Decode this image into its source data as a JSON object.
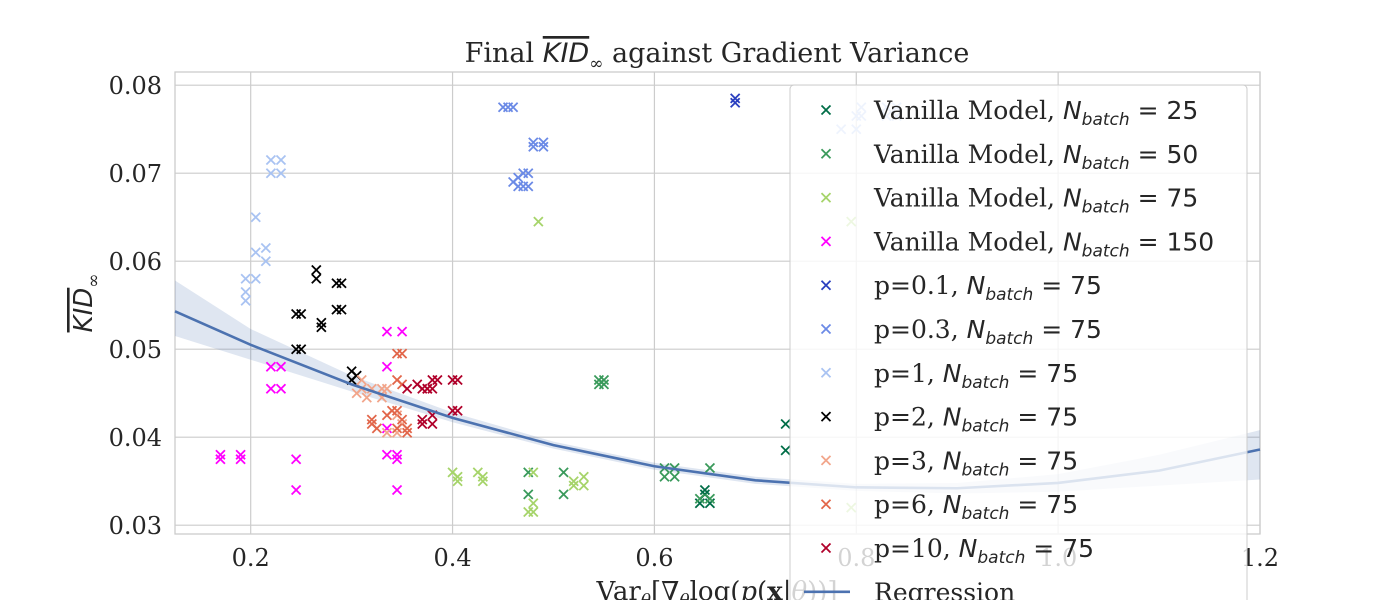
{
  "chart_data": {
    "type": "scatter",
    "title": "Final KID∞ against Gradient Variance",
    "ylabel": "KID∞",
    "xlabel": "Varθ[∇θlog(p(x|θ))]",
    "xlim": [
      0.125,
      1.2
    ],
    "ylim": [
      0.029,
      0.0815
    ],
    "xticks": [
      "0.2",
      "0.4",
      "0.6",
      "0.8",
      "1.0",
      "1.2"
    ],
    "yticks": [
      "0.03",
      "0.04",
      "0.05",
      "0.06",
      "0.07",
      "0.08"
    ],
    "grid": true,
    "legend_position": "top-right",
    "series": [
      {
        "name": "Vanilla Model, N_batch = 25",
        "label_prefix": "Vanilla Model, ",
        "label_value": "25",
        "color": "#006d47",
        "points": [
          [
            0.645,
            0.0325
          ],
          [
            0.65,
            0.0335
          ],
          [
            0.655,
            0.0325
          ],
          [
            0.65,
            0.034
          ],
          [
            0.73,
            0.0415
          ],
          [
            0.73,
            0.0385
          ]
        ]
      },
      {
        "name": "Vanilla Model, N_batch = 50",
        "label_prefix": "Vanilla Model, ",
        "label_value": "50",
        "color": "#3a9a5b",
        "points": [
          [
            0.545,
            0.046
          ],
          [
            0.55,
            0.0465
          ],
          [
            0.545,
            0.0465
          ],
          [
            0.55,
            0.046
          ],
          [
            0.61,
            0.0365
          ],
          [
            0.62,
            0.0365
          ],
          [
            0.61,
            0.0355
          ],
          [
            0.62,
            0.0355
          ],
          [
            0.645,
            0.033
          ],
          [
            0.655,
            0.033
          ],
          [
            0.655,
            0.0365
          ],
          [
            0.475,
            0.0335
          ],
          [
            0.51,
            0.0335
          ],
          [
            0.51,
            0.036
          ],
          [
            0.475,
            0.036
          ]
        ]
      },
      {
        "name": "Vanilla Model, N_batch = 75",
        "label_prefix": "Vanilla Model, ",
        "label_value": "75",
        "color": "#a6d46a",
        "points": [
          [
            0.475,
            0.0315
          ],
          [
            0.48,
            0.0315
          ],
          [
            0.48,
            0.0325
          ],
          [
            0.48,
            0.036
          ],
          [
            0.485,
            0.0645
          ],
          [
            0.4,
            0.036
          ],
          [
            0.405,
            0.035
          ],
          [
            0.405,
            0.0355
          ],
          [
            0.425,
            0.036
          ],
          [
            0.43,
            0.035
          ],
          [
            0.43,
            0.0355
          ],
          [
            0.52,
            0.0345
          ],
          [
            0.53,
            0.0345
          ],
          [
            0.52,
            0.035
          ],
          [
            0.53,
            0.0355
          ],
          [
            0.795,
            0.0645
          ],
          [
            0.795,
            0.032
          ]
        ]
      },
      {
        "name": "Vanilla Model, N_batch = 150",
        "label_prefix": "Vanilla Model, ",
        "label_value": "150",
        "color": "#ff00ff",
        "points": [
          [
            0.17,
            0.0375
          ],
          [
            0.17,
            0.038
          ],
          [
            0.19,
            0.0375
          ],
          [
            0.19,
            0.038
          ],
          [
            0.245,
            0.0375
          ],
          [
            0.245,
            0.034
          ],
          [
            0.22,
            0.0455
          ],
          [
            0.23,
            0.0455
          ],
          [
            0.22,
            0.048
          ],
          [
            0.23,
            0.048
          ],
          [
            0.335,
            0.052
          ],
          [
            0.35,
            0.052
          ],
          [
            0.335,
            0.048
          ],
          [
            0.335,
            0.041
          ],
          [
            0.335,
            0.038
          ],
          [
            0.345,
            0.0375
          ],
          [
            0.345,
            0.038
          ],
          [
            0.345,
            0.034
          ]
        ]
      },
      {
        "name": "p=0.1, N_batch = 75",
        "label_prefix": "p=0.1, ",
        "label_value": "75",
        "color": "#2a3fbf",
        "points": [
          [
            0.68,
            0.0785
          ],
          [
            0.68,
            0.078
          ]
        ]
      },
      {
        "name": "p=0.3, N_batch = 75",
        "label_prefix": "p=0.3, ",
        "label_value": "75",
        "color": "#6b8ae6",
        "points": [
          [
            0.45,
            0.0775
          ],
          [
            0.455,
            0.0775
          ],
          [
            0.46,
            0.0775
          ],
          [
            0.48,
            0.0735
          ],
          [
            0.49,
            0.0735
          ],
          [
            0.48,
            0.073
          ],
          [
            0.49,
            0.073
          ],
          [
            0.465,
            0.0695
          ],
          [
            0.47,
            0.07
          ],
          [
            0.475,
            0.07
          ],
          [
            0.46,
            0.069
          ],
          [
            0.465,
            0.0685
          ],
          [
            0.475,
            0.0685
          ],
          [
            0.47,
            0.0685
          ]
        ]
      },
      {
        "name": "p=1, N_batch = 75",
        "label_prefix": "p=1, ",
        "label_value": "75",
        "color": "#a9c3f2",
        "points": [
          [
            0.22,
            0.0715
          ],
          [
            0.23,
            0.0715
          ],
          [
            0.22,
            0.07
          ],
          [
            0.23,
            0.07
          ],
          [
            0.205,
            0.065
          ],
          [
            0.205,
            0.061
          ],
          [
            0.215,
            0.0615
          ],
          [
            0.215,
            0.06
          ],
          [
            0.195,
            0.058
          ],
          [
            0.205,
            0.058
          ],
          [
            0.195,
            0.0565
          ],
          [
            0.195,
            0.0555
          ],
          [
            0.83,
            0.0775
          ],
          [
            0.84,
            0.0775
          ],
          [
            0.83,
            0.0765
          ],
          [
            0.84,
            0.0765
          ],
          [
            0.805,
            0.0775
          ],
          [
            0.805,
            0.0765
          ],
          [
            0.8,
            0.0765
          ],
          [
            0.785,
            0.075
          ],
          [
            0.8,
            0.075
          ]
        ]
      },
      {
        "name": "p=2, N_batch = 75",
        "label_prefix": "p=2, ",
        "label_value": "75",
        "color": "#000000",
        "points": [
          [
            0.265,
            0.059
          ],
          [
            0.265,
            0.058
          ],
          [
            0.285,
            0.0575
          ],
          [
            0.29,
            0.0575
          ],
          [
            0.285,
            0.0545
          ],
          [
            0.29,
            0.0545
          ],
          [
            0.245,
            0.054
          ],
          [
            0.25,
            0.054
          ],
          [
            0.27,
            0.053
          ],
          [
            0.27,
            0.0525
          ],
          [
            0.245,
            0.05
          ],
          [
            0.25,
            0.05
          ],
          [
            0.3,
            0.0475
          ],
          [
            0.305,
            0.047
          ],
          [
            0.3,
            0.0465
          ]
        ]
      },
      {
        "name": "p=3, N_batch = 75",
        "label_prefix": "p=3, ",
        "label_value": "75",
        "color": "#f2a58a",
        "points": [
          [
            0.31,
            0.0465
          ],
          [
            0.31,
            0.0455
          ],
          [
            0.32,
            0.0455
          ],
          [
            0.305,
            0.045
          ],
          [
            0.315,
            0.0445
          ],
          [
            0.33,
            0.0455
          ],
          [
            0.335,
            0.0455
          ],
          [
            0.33,
            0.0445
          ],
          [
            0.335,
            0.0405
          ],
          [
            0.345,
            0.0405
          ],
          [
            0.35,
            0.0415
          ],
          [
            0.345,
            0.0425
          ]
        ]
      },
      {
        "name": "p=6, N_batch = 75",
        "label_prefix": "p=6, ",
        "label_value": "75",
        "color": "#e2664a",
        "points": [
          [
            0.345,
            0.0495
          ],
          [
            0.35,
            0.0495
          ],
          [
            0.345,
            0.0465
          ],
          [
            0.35,
            0.046
          ],
          [
            0.32,
            0.042
          ],
          [
            0.32,
            0.0415
          ],
          [
            0.325,
            0.041
          ],
          [
            0.335,
            0.0425
          ],
          [
            0.34,
            0.043
          ],
          [
            0.345,
            0.043
          ],
          [
            0.35,
            0.042
          ],
          [
            0.355,
            0.041
          ],
          [
            0.355,
            0.0405
          ],
          [
            0.345,
            0.041
          ]
        ]
      },
      {
        "name": "p=10, N_batch = 75",
        "label_prefix": "p=10, ",
        "label_value": "75",
        "color": "#b0002a",
        "points": [
          [
            0.355,
            0.0455
          ],
          [
            0.365,
            0.046
          ],
          [
            0.37,
            0.0455
          ],
          [
            0.375,
            0.0455
          ],
          [
            0.38,
            0.0455
          ],
          [
            0.385,
            0.0465
          ],
          [
            0.38,
            0.0465
          ],
          [
            0.375,
            0.0455
          ],
          [
            0.37,
            0.042
          ],
          [
            0.38,
            0.0425
          ],
          [
            0.38,
            0.0415
          ],
          [
            0.37,
            0.0415
          ],
          [
            0.4,
            0.0465
          ],
          [
            0.405,
            0.0465
          ],
          [
            0.4,
            0.043
          ],
          [
            0.405,
            0.043
          ]
        ]
      },
      {
        "name": "Regression",
        "type": "line",
        "color": "#4c72b0",
        "curve": {
          "x": [
            0.125,
            0.2,
            0.3,
            0.4,
            0.5,
            0.6,
            0.7,
            0.8,
            0.9,
            1.0,
            1.1,
            1.2
          ],
          "y": [
            0.0543,
            0.0505,
            0.046,
            0.0422,
            0.0391,
            0.0367,
            0.0351,
            0.0343,
            0.0342,
            0.0348,
            0.0362,
            0.0386
          ]
        },
        "band": {
          "lower": [
            0.0515,
            0.0488,
            0.0452,
            0.0417,
            0.0387,
            0.0363,
            0.0347,
            0.0339,
            0.0336,
            0.0338,
            0.0345,
            0.0352
          ],
          "upper": [
            0.0578,
            0.0523,
            0.047,
            0.0428,
            0.0395,
            0.0371,
            0.0355,
            0.0347,
            0.0348,
            0.0358,
            0.038,
            0.0408
          ]
        }
      }
    ]
  }
}
